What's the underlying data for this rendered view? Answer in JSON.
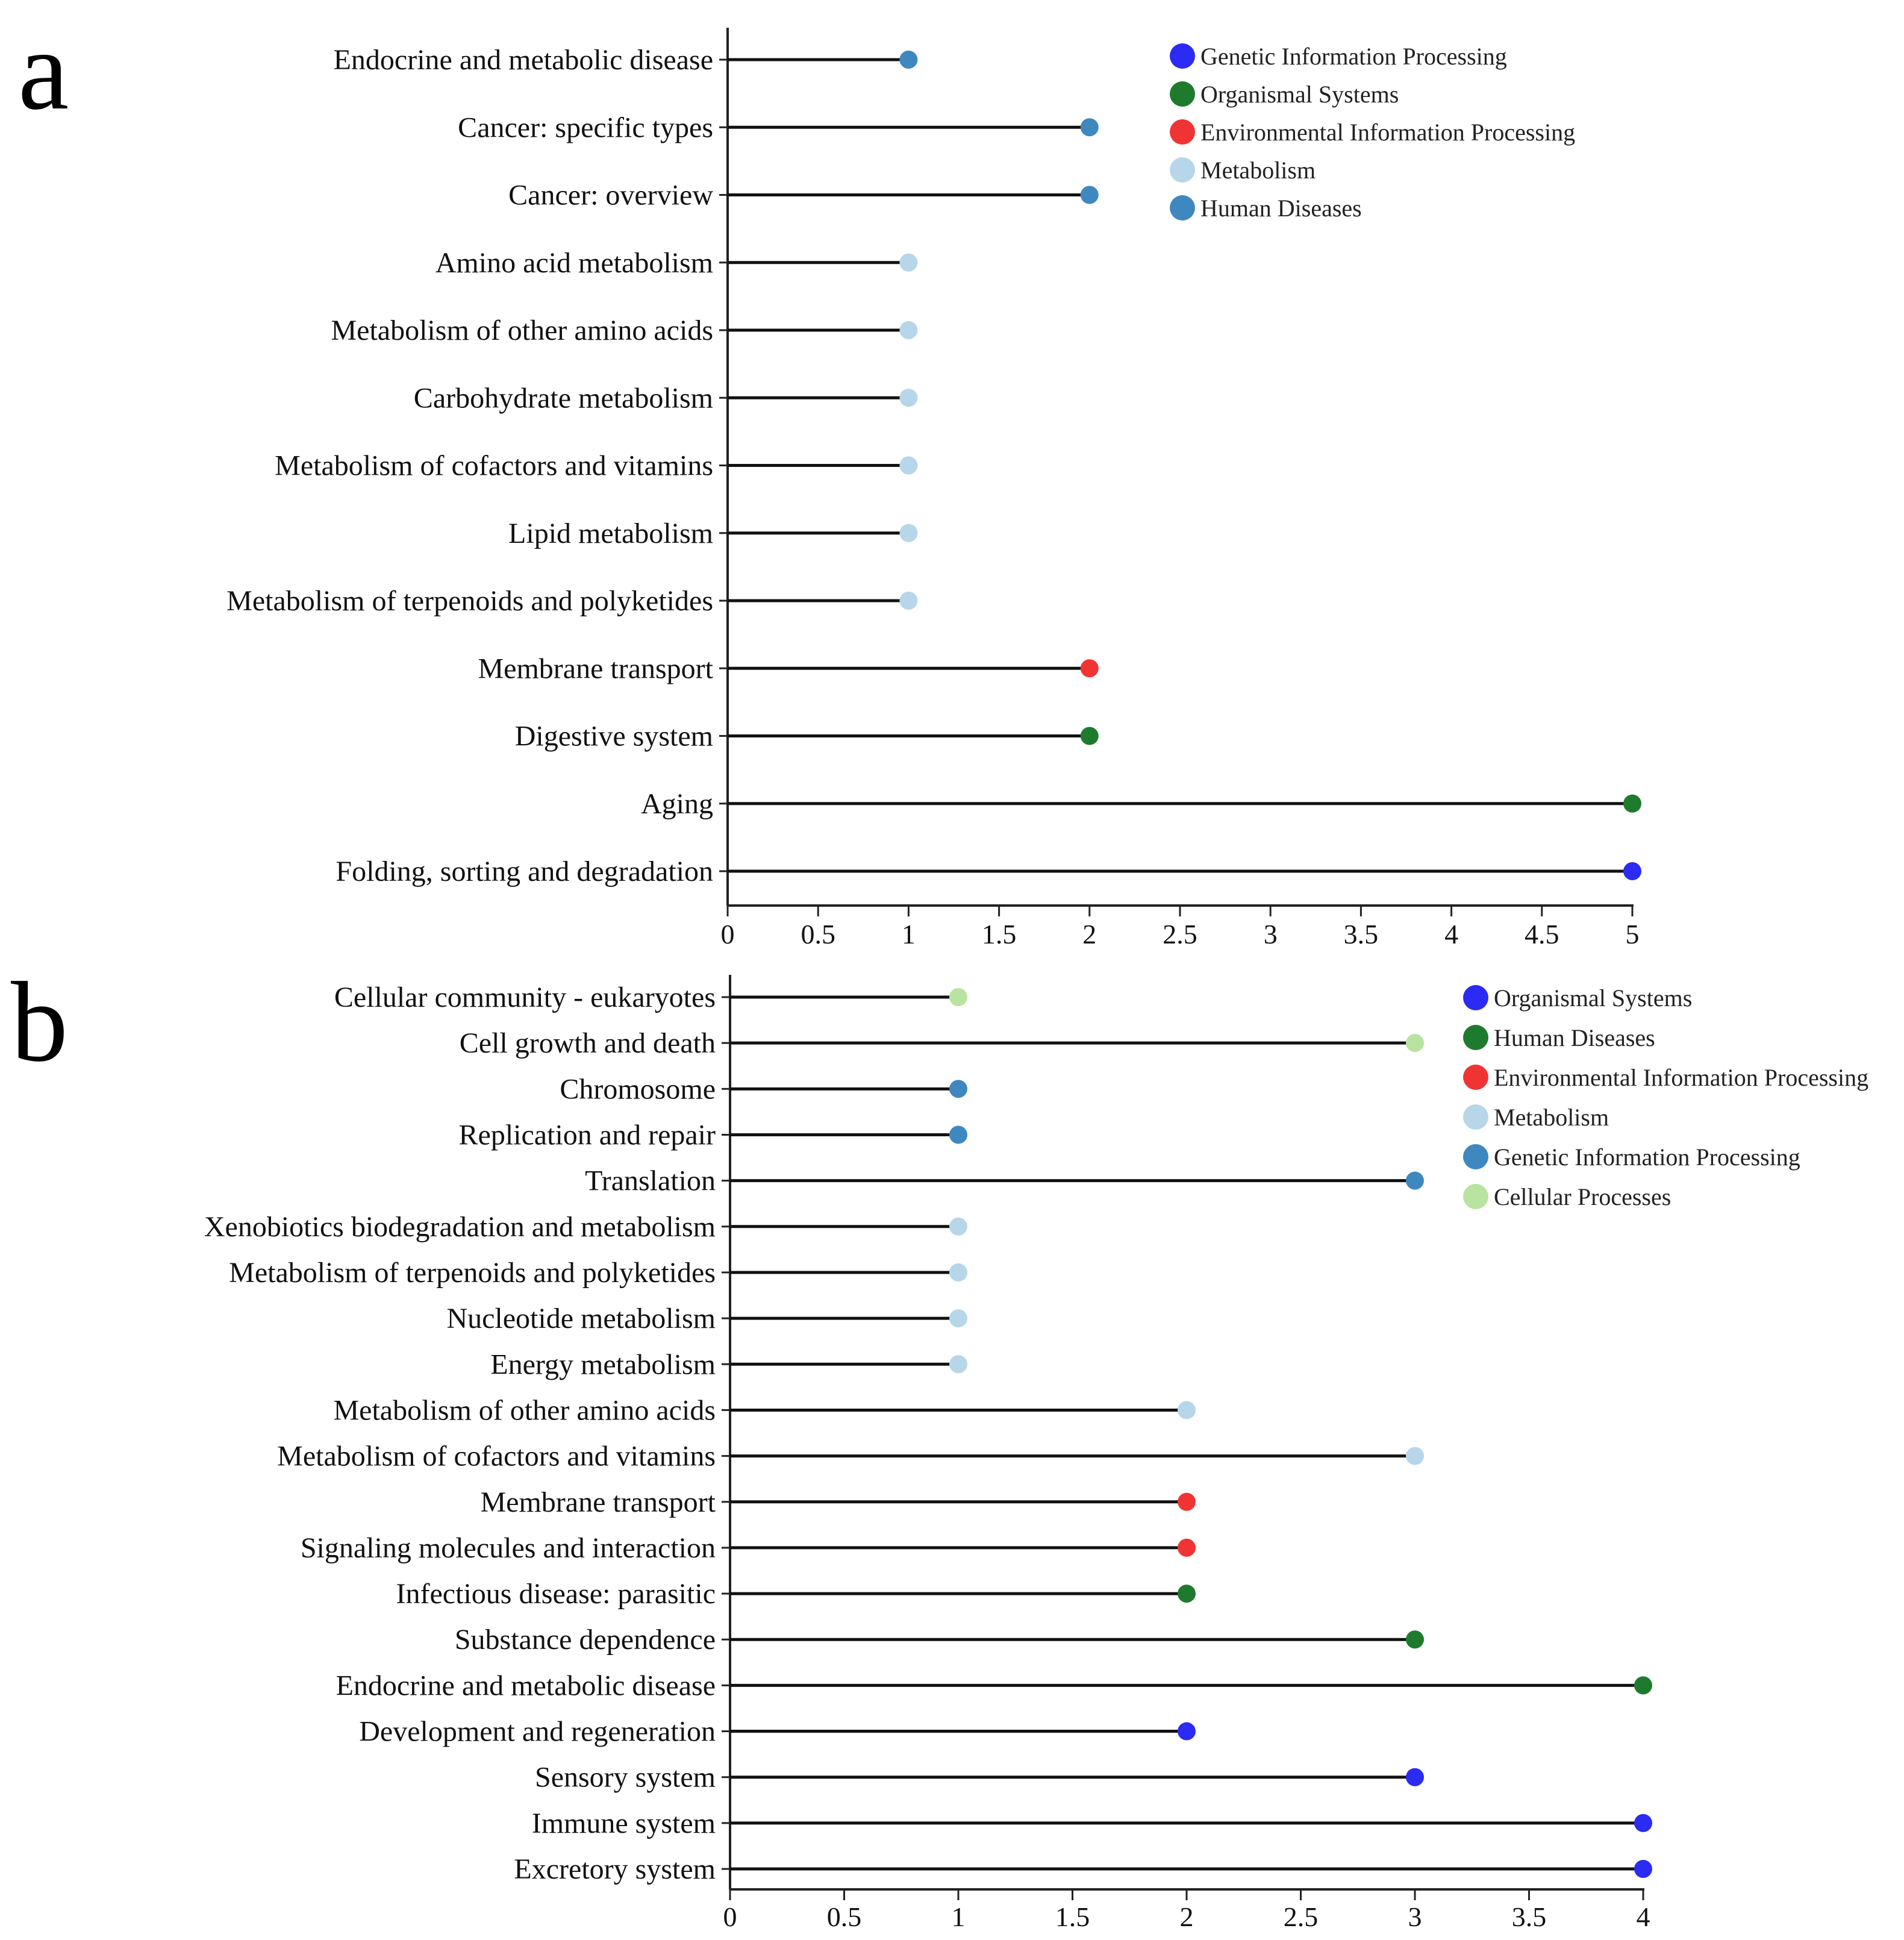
{
  "chart_data": [
    {
      "panel": "a",
      "type": "lollipop",
      "orientation": "horizontal",
      "xlim": [
        0,
        5
      ],
      "xticks": [
        "0",
        "0.5",
        "1",
        "1.5",
        "2",
        "2.5",
        "3",
        "3.5",
        "4",
        "4.5",
        "5"
      ],
      "legend_placement": "top-right",
      "legend": [
        {
          "name": "Genetic Information Processing",
          "color": "#2b2bf3"
        },
        {
          "name": "Organismal Systems",
          "color": "#1e7b2e"
        },
        {
          "name": "Environmental Information Processing",
          "color": "#f03434"
        },
        {
          "name": "Metabolism",
          "color": "#b7d6ea"
        },
        {
          "name": "Human Diseases",
          "color": "#3f88bf"
        }
      ],
      "points": [
        {
          "category": "Endocrine and metabolic disease",
          "value": 1,
          "color": "#3f88bf"
        },
        {
          "category": "Cancer: specific types",
          "value": 2,
          "color": "#3f88bf"
        },
        {
          "category": "Cancer: overview",
          "value": 2,
          "color": "#3f88bf"
        },
        {
          "category": "Amino acid metabolism",
          "value": 1,
          "color": "#b7d6ea"
        },
        {
          "category": "Metabolism of other amino acids",
          "value": 1,
          "color": "#b7d6ea"
        },
        {
          "category": "Carbohydrate metabolism",
          "value": 1,
          "color": "#b7d6ea"
        },
        {
          "category": "Metabolism of cofactors and vitamins",
          "value": 1,
          "color": "#b7d6ea"
        },
        {
          "category": "Lipid metabolism",
          "value": 1,
          "color": "#b7d6ea"
        },
        {
          "category": "Metabolism of terpenoids and polyketides",
          "value": 1,
          "color": "#b7d6ea"
        },
        {
          "category": "Membrane transport",
          "value": 2,
          "color": "#f03434"
        },
        {
          "category": "Digestive system",
          "value": 2,
          "color": "#1e7b2e"
        },
        {
          "category": "Aging",
          "value": 5,
          "color": "#1e7b2e"
        },
        {
          "category": "Folding, sorting and degradation",
          "value": 5,
          "color": "#2b2bf3"
        }
      ]
    },
    {
      "panel": "b",
      "type": "lollipop",
      "orientation": "horizontal",
      "xlim": [
        0,
        4
      ],
      "xticks": [
        "0",
        "0.5",
        "1",
        "1.5",
        "2",
        "2.5",
        "3",
        "3.5",
        "4"
      ],
      "legend_placement": "top-right",
      "legend": [
        {
          "name": "Organismal Systems",
          "color": "#2b2bf3"
        },
        {
          "name": "Human Diseases",
          "color": "#1e7b2e"
        },
        {
          "name": "Environmental Information Processing",
          "color": "#f03434"
        },
        {
          "name": "Metabolism",
          "color": "#b7d6ea"
        },
        {
          "name": "Genetic Information Processing",
          "color": "#3f88bf"
        },
        {
          "name": "Cellular Processes",
          "color": "#b9e3a0"
        }
      ],
      "points": [
        {
          "category": "Cellular community - eukaryotes",
          "value": 1,
          "color": "#b9e3a0"
        },
        {
          "category": "Cell growth and death",
          "value": 3,
          "color": "#b9e3a0"
        },
        {
          "category": "Chromosome",
          "value": 1,
          "color": "#3f88bf"
        },
        {
          "category": "Replication and repair",
          "value": 1,
          "color": "#3f88bf"
        },
        {
          "category": "Translation",
          "value": 3,
          "color": "#3f88bf"
        },
        {
          "category": "Xenobiotics biodegradation and metabolism",
          "value": 1,
          "color": "#b7d6ea"
        },
        {
          "category": "Metabolism of terpenoids and polyketides",
          "value": 1,
          "color": "#b7d6ea"
        },
        {
          "category": "Nucleotide metabolism",
          "value": 1,
          "color": "#b7d6ea"
        },
        {
          "category": "Energy metabolism",
          "value": 1,
          "color": "#b7d6ea"
        },
        {
          "category": "Metabolism of other amino acids",
          "value": 2,
          "color": "#b7d6ea"
        },
        {
          "category": "Metabolism of cofactors and vitamins",
          "value": 3,
          "color": "#b7d6ea"
        },
        {
          "category": "Membrane transport",
          "value": 2,
          "color": "#f03434"
        },
        {
          "category": "Signaling molecules and interaction",
          "value": 2,
          "color": "#f03434"
        },
        {
          "category": "Infectious disease: parasitic",
          "value": 2,
          "color": "#1e7b2e"
        },
        {
          "category": "Substance dependence",
          "value": 3,
          "color": "#1e7b2e"
        },
        {
          "category": "Endocrine and metabolic disease",
          "value": 4,
          "color": "#1e7b2e"
        },
        {
          "category": "Development and regeneration",
          "value": 2,
          "color": "#2b2bf3"
        },
        {
          "category": "Sensory system",
          "value": 3,
          "color": "#2b2bf3"
        },
        {
          "category": "Immune system",
          "value": 4,
          "color": "#2b2bf3"
        },
        {
          "category": "Excretory system",
          "value": 4,
          "color": "#2b2bf3"
        }
      ]
    }
  ],
  "panel_labels": [
    "a",
    "b"
  ]
}
